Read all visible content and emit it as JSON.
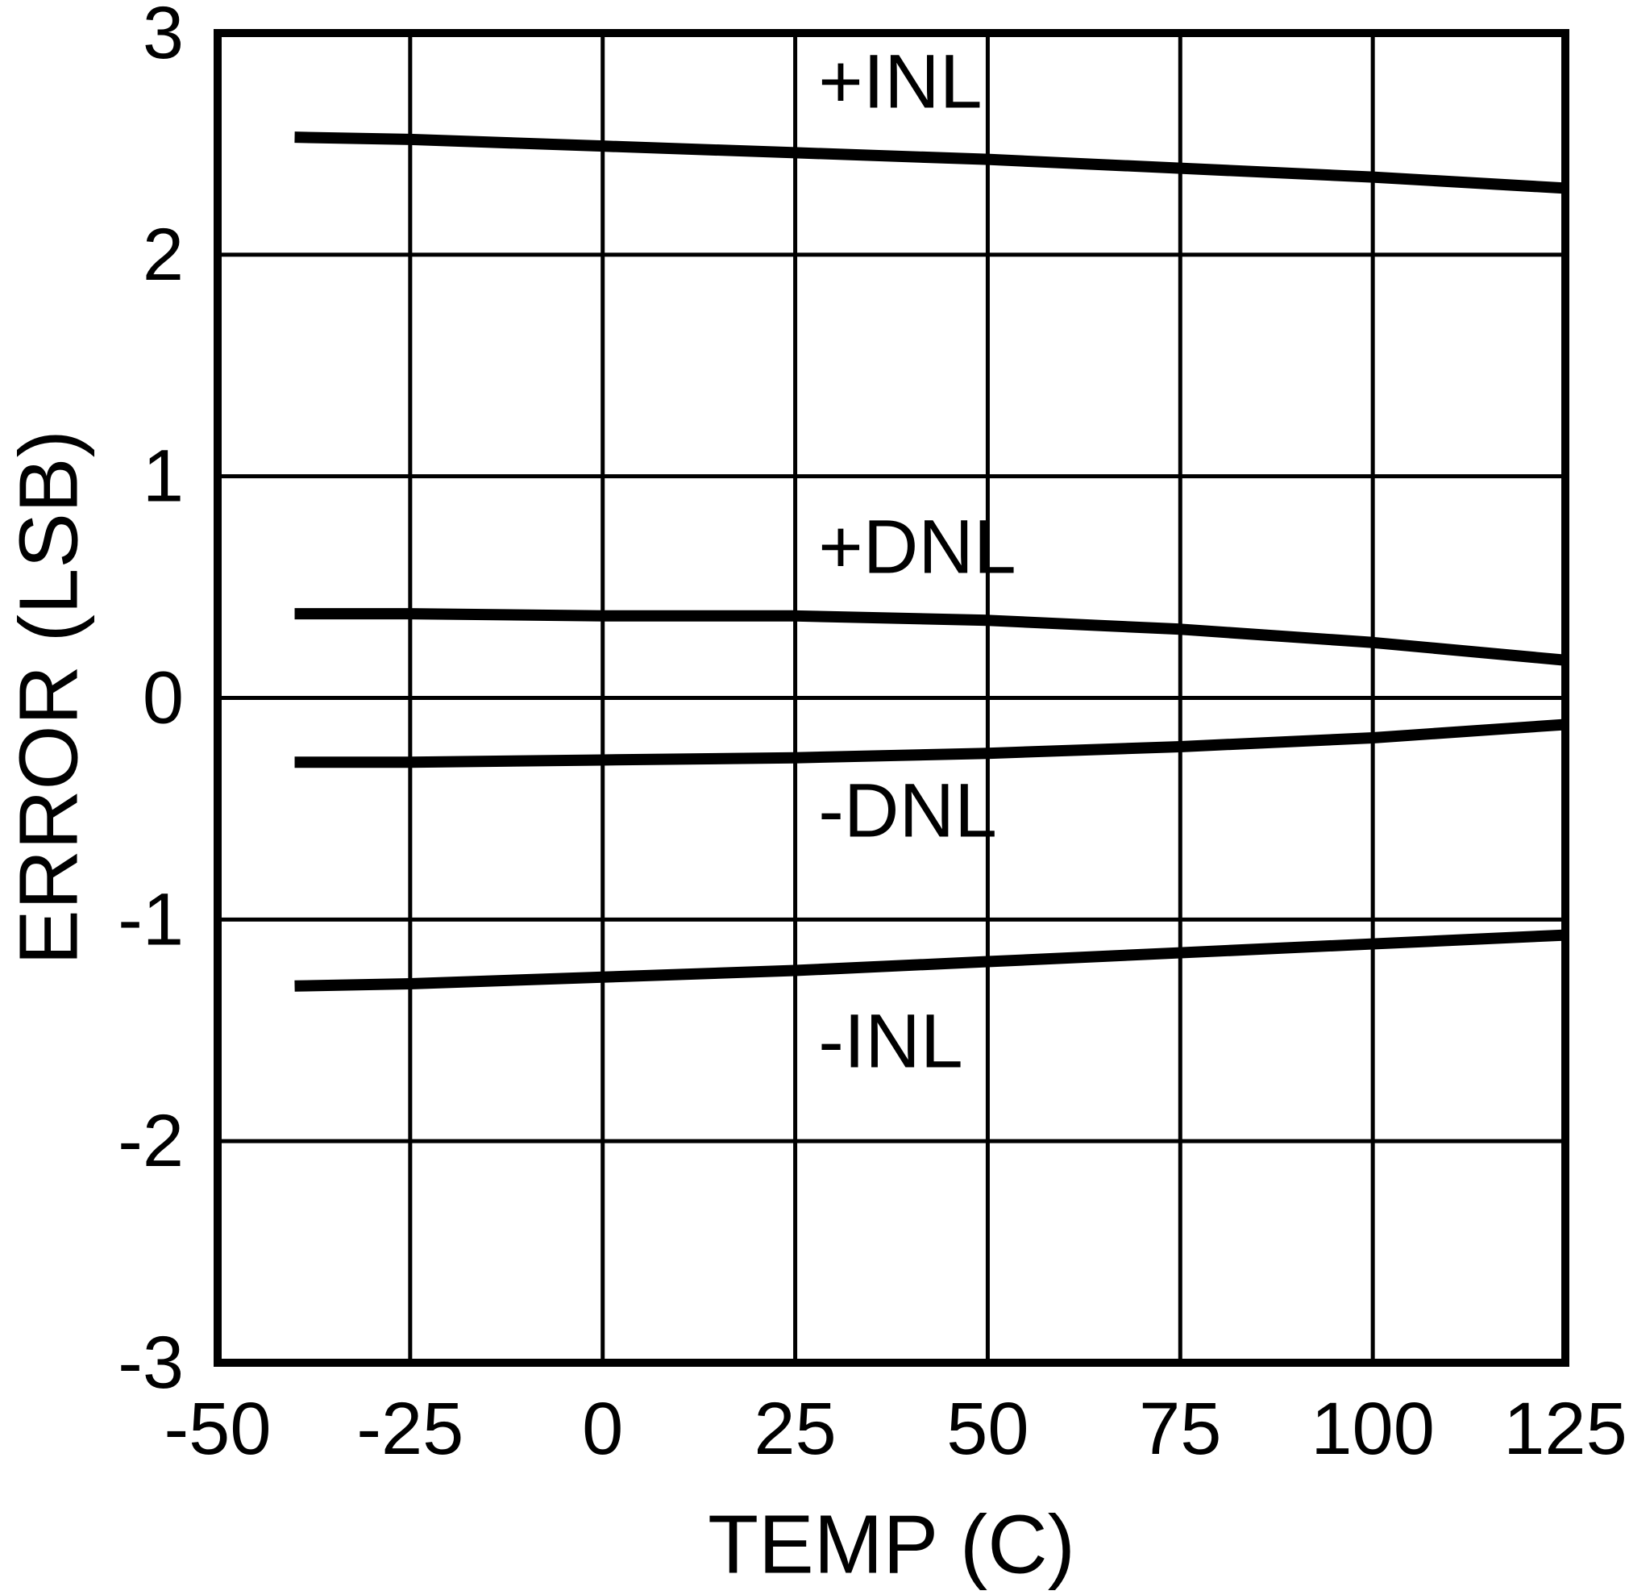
{
  "chart_data": {
    "type": "line",
    "title": "",
    "xlabel": "TEMP (C)",
    "ylabel": "ERROR (LSB)",
    "xlim": [
      -50,
      125
    ],
    "ylim": [
      -3,
      3
    ],
    "x_ticks": [
      -50,
      -25,
      0,
      25,
      50,
      75,
      100,
      125
    ],
    "y_ticks": [
      -3,
      -2,
      -1,
      0,
      1,
      2,
      3
    ],
    "grid": true,
    "legend": "none",
    "background": "#ffffff",
    "line_color": "#000000",
    "x": [
      -40,
      -25,
      0,
      25,
      50,
      75,
      100,
      125
    ],
    "series": [
      {
        "name": "+INL",
        "values": [
          2.53,
          2.52,
          2.49,
          2.46,
          2.43,
          2.39,
          2.35,
          2.3
        ]
      },
      {
        "name": "+DNL",
        "values": [
          0.38,
          0.38,
          0.37,
          0.37,
          0.35,
          0.31,
          0.25,
          0.17
        ]
      },
      {
        "name": "-DNL",
        "values": [
          -0.29,
          -0.29,
          -0.28,
          -0.27,
          -0.25,
          -0.22,
          -0.18,
          -0.12
        ]
      },
      {
        "name": "-INL",
        "values": [
          -1.3,
          -1.29,
          -1.26,
          -1.23,
          -1.19,
          -1.15,
          -1.11,
          -1.07
        ]
      }
    ],
    "annotations": [
      {
        "text": "+INL",
        "x": 28,
        "y": 2.78
      },
      {
        "text": "+DNL",
        "x": 28,
        "y": 0.68
      },
      {
        "text": "-DNL",
        "x": 28,
        "y": -0.51
      },
      {
        "text": "-INL",
        "x": 28,
        "y": -1.55
      }
    ]
  }
}
